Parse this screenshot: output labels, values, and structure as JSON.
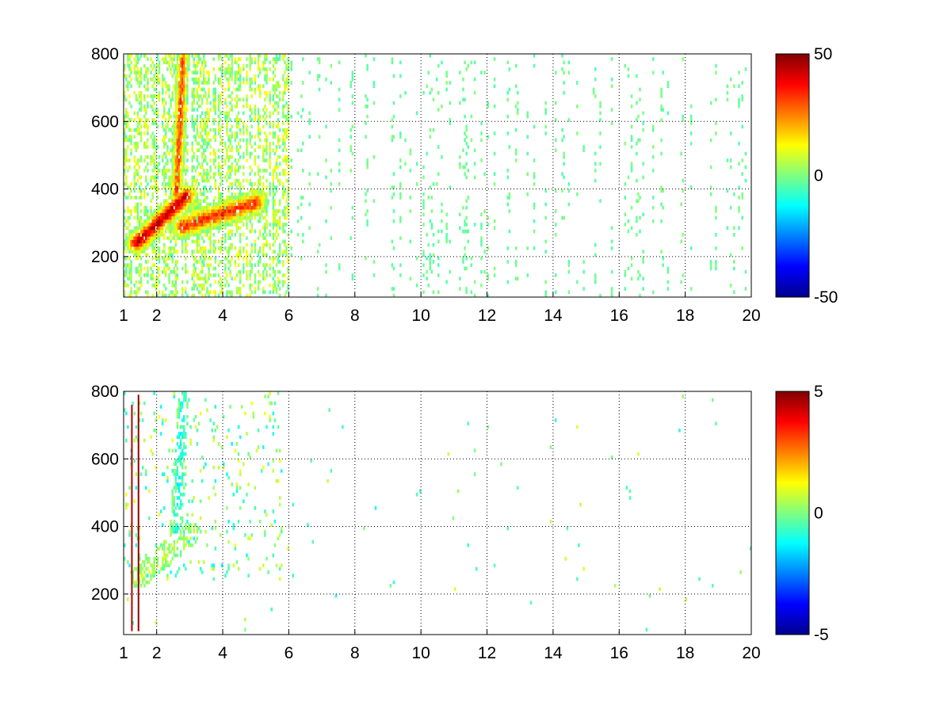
{
  "chart_data": [
    {
      "type": "heatmap",
      "title": "",
      "xlabel": "",
      "ylabel": "",
      "xlim": [
        1,
        20
      ],
      "ylim": [
        80,
        800
      ],
      "xticks": [
        1,
        2,
        4,
        6,
        8,
        10,
        12,
        14,
        16,
        18,
        20
      ],
      "yticks": [
        200,
        400,
        600,
        800
      ],
      "grid": true,
      "colormap": "jet",
      "clim": [
        -50,
        50
      ],
      "colorbar_ticks": [
        50,
        0,
        -50
      ],
      "colorbar_location": "right",
      "features": [
        {
          "x": [
            1.4,
            2.9
          ],
          "y": [
            240,
            380
          ],
          "value": 42,
          "width": 0.22,
          "label": "ridge"
        },
        {
          "x": [
            2.6,
            2.8
          ],
          "y": [
            380,
            790
          ],
          "value": 30,
          "width": 0.12,
          "label": "vertical band"
        },
        {
          "x": [
            2.8,
            5.0
          ],
          "y": [
            290,
            360
          ],
          "value": 32,
          "width": 0.25,
          "label": "ridge 2"
        }
      ],
      "scatter_density": "dense below 6, sparse above 6"
    },
    {
      "type": "heatmap",
      "title": "",
      "xlabel": "",
      "ylabel": "",
      "xlim": [
        1,
        20
      ],
      "ylim": [
        80,
        800
      ],
      "xticks": [
        1,
        2,
        4,
        6,
        8,
        10,
        12,
        14,
        16,
        18,
        20
      ],
      "yticks": [
        200,
        400,
        600,
        800
      ],
      "grid": true,
      "colormap": "jet",
      "clim": [
        -5,
        5
      ],
      "colorbar_ticks": [
        5,
        0,
        -5
      ],
      "colorbar_location": "right",
      "features": [
        {
          "x": [
            1.5,
            3.0
          ],
          "y": [
            250,
            380
          ],
          "value": 0.5,
          "width": 0.2,
          "label": "ridge"
        },
        {
          "x": [
            2.6,
            2.8
          ],
          "y": [
            380,
            780
          ],
          "value": -1,
          "width": 0.12,
          "label": "vertical band"
        }
      ],
      "scatter_density": "sparse, concentrated below 6"
    }
  ]
}
